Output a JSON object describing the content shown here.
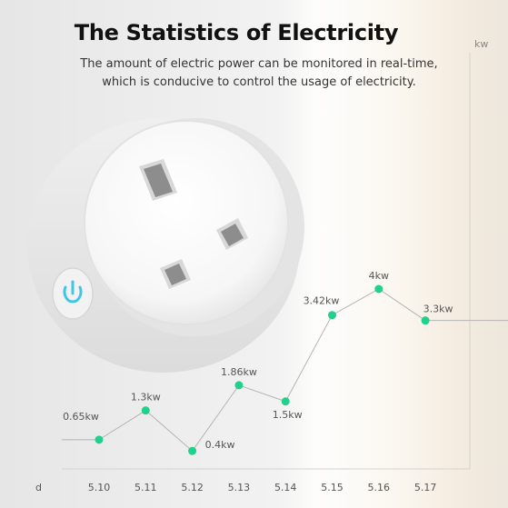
{
  "header": {
    "title": "The Statistics of Electricity",
    "subtitle_line1": "The amount of electric power can be monitored in real-time,",
    "subtitle_line2": "which is conducive to control the usage of electricity."
  },
  "product": {
    "name": "smart plug",
    "button_icon": "power-icon",
    "accent_color": "#3fc6e6"
  },
  "chart_data": {
    "type": "line",
    "title": "The Statistics of Electricity",
    "xlabel": "d",
    "ylabel": "kw",
    "categories": [
      "5.10",
      "5.11",
      "5.12",
      "5.13",
      "5.14",
      "5.15",
      "5.16",
      "5.17"
    ],
    "series": [
      {
        "values": [
          0.65,
          1.3,
          0.4,
          1.86,
          1.5,
          3.42,
          4.0,
          3.3
        ],
        "labels": [
          "0.65kw",
          "1.3kw",
          "0.4kw",
          "1.86kw",
          "1.5kw",
          "3.42kw",
          "4kw",
          "3.3kw"
        ],
        "color": "#21d08a",
        "line_color": "#b4b4b4"
      }
    ],
    "ylim": [
      0,
      4.8
    ],
    "grid": false,
    "legend": "none"
  }
}
